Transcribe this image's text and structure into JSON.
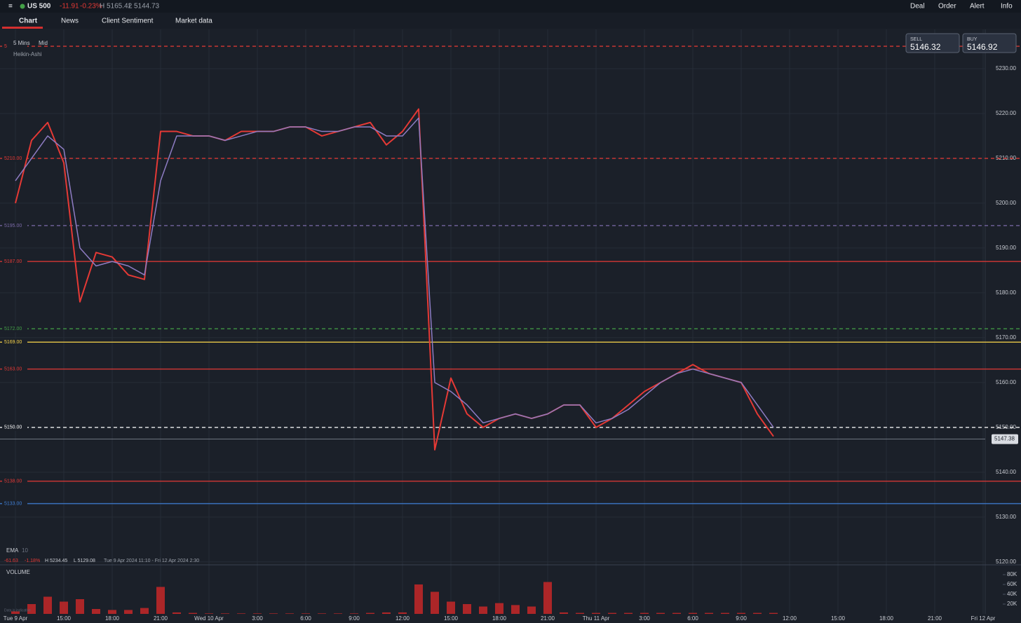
{
  "header": {
    "menu": "≡",
    "instrument": "US 500",
    "change": "-11.91",
    "change_pct": "-0.23%",
    "high": "H 5165.42",
    "low": "L 5144.73",
    "actions": [
      "Deal",
      "Order",
      "Alert",
      "Info"
    ]
  },
  "tabs": [
    "Chart",
    "News",
    "Client Sentiment",
    "Market data"
  ],
  "quote": {
    "sell_label": "SELL",
    "sell": "5146.32",
    "buy_label": "BUY",
    "buy": "5146.92"
  },
  "overlay": {
    "interval": "5 Mins",
    "price_type": "Mid",
    "style": "Heikin-Ashi",
    "ema_label": "EMA",
    "ema_period": "10",
    "range_change": "-61.63",
    "range_change_pct": "-1.18%",
    "range_high": "H 5234.45",
    "range_low": "L 5129.08",
    "range_dates": "Tue 9 Apr 2024 11:10 - Fri 12 Apr 2024 2:30",
    "volume_label": "VOLUME",
    "disclaimer": "Data is indicative"
  },
  "chart_data": [
    {
      "type": "line",
      "categories": [
        "Tue 9 Apr",
        null,
        null,
        "15:00",
        null,
        null,
        "18:00",
        null,
        null,
        "21:00",
        null,
        null,
        "Wed 10 Apr",
        null,
        null,
        "3:00",
        null,
        null,
        "6:00",
        null,
        null,
        "9:00",
        null,
        null,
        "12:00",
        null,
        null,
        "15:00",
        null,
        null,
        "18:00",
        null,
        null,
        "21:00",
        null,
        null,
        "Thu 11 Apr",
        null,
        null,
        "3:00",
        null,
        null,
        "6:00",
        null,
        null,
        "9:00",
        null,
        null,
        "12:00",
        null,
        null,
        "15:00",
        null,
        null,
        "18:00",
        null,
        null,
        "21:00",
        null,
        null,
        "Fri 12 Apr"
      ],
      "series": [
        {
          "name": "US 500",
          "color": "#e53935",
          "values": [
            5200,
            5214,
            5218,
            5209,
            5178,
            5189,
            5188,
            5184,
            5183,
            5216,
            5216,
            5215,
            5215,
            5214,
            5216,
            5216,
            5216,
            5217,
            5217,
            5215,
            5216,
            5217,
            5218,
            5213,
            5216,
            5221,
            5145,
            5161,
            5153,
            5150,
            5152,
            5153,
            5152,
            5153,
            5155,
            5155,
            5150,
            5152,
            5155,
            5158,
            5160,
            5162,
            5164,
            5162,
            5161,
            5160,
            5153,
            5148,
            null,
            null,
            null,
            null,
            null,
            null,
            null,
            null,
            null,
            null,
            null,
            null,
            null
          ]
        },
        {
          "name": "EMA",
          "color": "#8e7cc3",
          "values": [
            5205,
            5210,
            5215,
            5212,
            5190,
            5186,
            5187,
            5186,
            5184,
            5205,
            5215,
            5215,
            5215,
            5214,
            5215,
            5216,
            5216,
            5217,
            5217,
            5216,
            5216,
            5217,
            5217,
            5215,
            5215,
            5219,
            5160,
            5158,
            5155,
            5151,
            5152,
            5153,
            5152,
            5153,
            5155,
            5155,
            5151,
            5152,
            5154,
            5157,
            5160,
            5162,
            5163,
            5162,
            5161,
            5160,
            5155,
            5150,
            null,
            null,
            null,
            null,
            null,
            null,
            null,
            null,
            null,
            null,
            null,
            null,
            null
          ]
        }
      ],
      "ylim": [
        5119.5,
        5238.75
      ],
      "yticks": [
        {
          "value": 5120,
          "label": "5120.00"
        },
        {
          "value": 5130,
          "label": "5130.00"
        },
        {
          "value": 5140,
          "label": "5140.00"
        },
        {
          "value": 5150,
          "label": "5150.00"
        },
        {
          "value": 5160,
          "label": "5160.00"
        },
        {
          "value": 5170,
          "label": "5170.00"
        },
        {
          "value": 5180,
          "label": "5180.00"
        },
        {
          "value": 5190,
          "label": "5190.00"
        },
        {
          "value": 5200,
          "label": "5200.00"
        },
        {
          "value": 5210,
          "label": "5210.00"
        },
        {
          "value": 5220,
          "label": "5220.00"
        },
        {
          "value": 5230,
          "label": "5230.00"
        }
      ],
      "grid": true,
      "levels": [
        {
          "value": 5235,
          "label": "5",
          "color": "#e53935",
          "style": "dashed"
        },
        {
          "value": 5210,
          "label": "5210.00",
          "color": "#e53935",
          "style": "dashed"
        },
        {
          "value": 5195,
          "label": "5195.00",
          "color": "#7b6aa8",
          "style": "dashed"
        },
        {
          "value": 5187,
          "label": "5187.00",
          "color": "#e53935",
          "style": "solid"
        },
        {
          "value": 5172,
          "label": "5172.00",
          "color": "#43a047",
          "style": "dashed"
        },
        {
          "value": 5169,
          "label": "5169.00",
          "color": "#f9d54a",
          "style": "solid"
        },
        {
          "value": 5163,
          "label": "5163.00",
          "color": "#e53935",
          "style": "solid"
        },
        {
          "value": 5150,
          "label": "5150.00",
          "color": "#ffffff",
          "style": "dashed"
        },
        {
          "value": 5138,
          "label": "5138.00",
          "color": "#e53935",
          "style": "solid"
        },
        {
          "value": 5133,
          "label": "5133.00",
          "color": "#3f7fd6",
          "style": "solid"
        }
      ],
      "current_price": 5147.38
    },
    {
      "type": "bar",
      "name": "VOLUME",
      "color": "#c62828",
      "values": [
        5000,
        20000,
        35000,
        25000,
        30000,
        10000,
        8000,
        8000,
        12000,
        55000,
        3000,
        2000,
        1000,
        1000,
        1000,
        1000,
        1000,
        1000,
        1000,
        1000,
        1000,
        1000,
        2000,
        3000,
        3000,
        60000,
        45000,
        25000,
        20000,
        15000,
        22000,
        18000,
        15000,
        65000,
        3000,
        2000,
        2000,
        2000,
        2000,
        2000,
        2000,
        2000,
        2000,
        2000,
        2000,
        2000,
        2000,
        2000,
        null,
        null,
        null,
        null,
        null,
        null,
        null,
        null,
        null,
        null,
        null,
        null,
        null
      ],
      "ylim": [
        0,
        90000
      ],
      "yticks": [
        {
          "value": 20000,
          "label": "20K"
        },
        {
          "value": 40000,
          "label": "40K"
        },
        {
          "value": 60000,
          "label": "60K"
        },
        {
          "value": 80000,
          "label": "80K"
        }
      ]
    }
  ]
}
